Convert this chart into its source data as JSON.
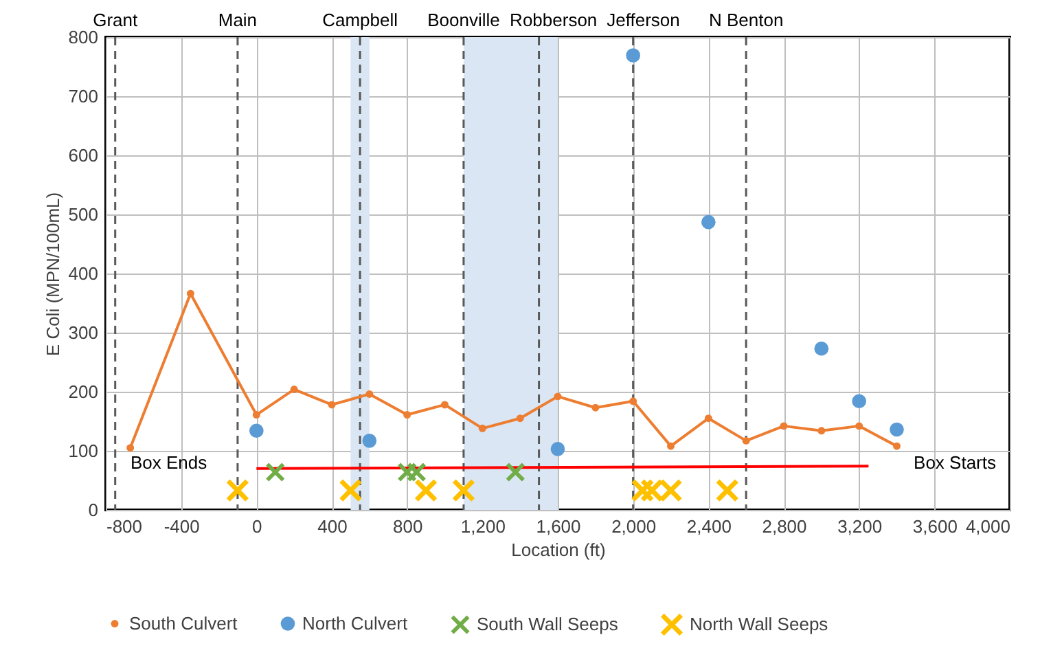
{
  "chart_data": {
    "type": "scatter",
    "xlabel": "Location (ft)",
    "ylabel": "E Coli (MPN/100mL)",
    "xlim": [
      -800,
      4000
    ],
    "xticks": [
      -800,
      -400,
      0,
      400,
      800,
      {
        "value": 1200,
        "label": "1,200"
      },
      {
        "value": 1600,
        "label": "1,600"
      },
      {
        "value": 2000,
        "label": "2,000"
      },
      {
        "value": 2400,
        "label": "2,400"
      },
      {
        "value": 2800,
        "label": "2,800"
      },
      {
        "value": 3200,
        "label": "3,200"
      },
      {
        "value": 3600,
        "label": "3,600"
      },
      {
        "value": 4000,
        "label": "4,000"
      }
    ],
    "ylim": [
      0,
      800
    ],
    "yticks": [
      0,
      100,
      200,
      300,
      400,
      500,
      600,
      700,
      800
    ],
    "grid": true,
    "legend": "bottom",
    "series": [
      {
        "name": "South Culvert",
        "type": "line",
        "marker": "circle",
        "color": "#ed7d31",
        "x": [
          -670,
          -350,
          0,
          200,
          400,
          600,
          800,
          1000,
          1200,
          1400,
          1600,
          1800,
          2000,
          2200,
          2400,
          2600,
          2800,
          3000,
          3200,
          3400
        ],
        "values": [
          105,
          366,
          161,
          204,
          178,
          196,
          161,
          178,
          138,
          155,
          192,
          173,
          184,
          108,
          155,
          117,
          142,
          134,
          142,
          108
        ]
      },
      {
        "name": "North Culvert",
        "marker": "circle",
        "color": "#5b9bd5",
        "x": [
          0,
          600,
          1600,
          2000,
          2400,
          3000,
          3200,
          3400
        ],
        "values": [
          134,
          117,
          103,
          769,
          487,
          273,
          184,
          136
        ]
      },
      {
        "name": "South Wall Seeps",
        "marker": "cross",
        "color": "#70ad47",
        "x": [
          100,
          800,
          850,
          1375
        ],
        "values": [
          64,
          64,
          64,
          64
        ]
      },
      {
        "name": "North Wall Seeps",
        "marker": "cross",
        "color": "#ffc000",
        "x": [
          -100,
          500,
          900,
          1100,
          2050,
          2100,
          2200,
          2500
        ],
        "values": [
          33,
          33,
          33,
          33,
          33,
          33,
          33,
          33
        ]
      },
      {
        "type": "line",
        "marker": "none",
        "color": "#ff0000",
        "x": [
          0,
          3250
        ],
        "values": [
          70,
          74
        ]
      }
    ],
    "ref_lines": [
      {
        "axis": "x",
        "value": -750,
        "label": "Grant",
        "color": "#595959",
        "line_style": "dashed"
      },
      {
        "axis": "x",
        "value": -100,
        "label": "Main",
        "color": "#595959",
        "line_style": "dashed"
      },
      {
        "axis": "x",
        "value": 550,
        "label": "Campbell",
        "color": "#595959",
        "line_style": "dashed"
      },
      {
        "axis": "x",
        "value": 1100,
        "label": "Boonville",
        "color": "#595959",
        "line_style": "dashed"
      },
      {
        "axis": "x",
        "value": 1500,
        "label": "Robberson",
        "color": "#595959",
        "line_style": "dashed"
      },
      {
        "axis": "x",
        "value": 2000,
        "label": "Jefferson",
        "color": "#595959",
        "line_style": "dashed"
      },
      {
        "axis": "x",
        "value": 2600,
        "label": "N Benton",
        "color": "#595959",
        "line_style": "dashed"
      }
    ],
    "bands": [
      {
        "axis": "x",
        "from": 500,
        "to": 600,
        "color": "#dae6f3"
      },
      {
        "axis": "x",
        "from": 1100,
        "to": 1600,
        "color": "#dae6f3"
      }
    ],
    "annotations": [
      "Box Ends",
      "Box Starts"
    ]
  }
}
